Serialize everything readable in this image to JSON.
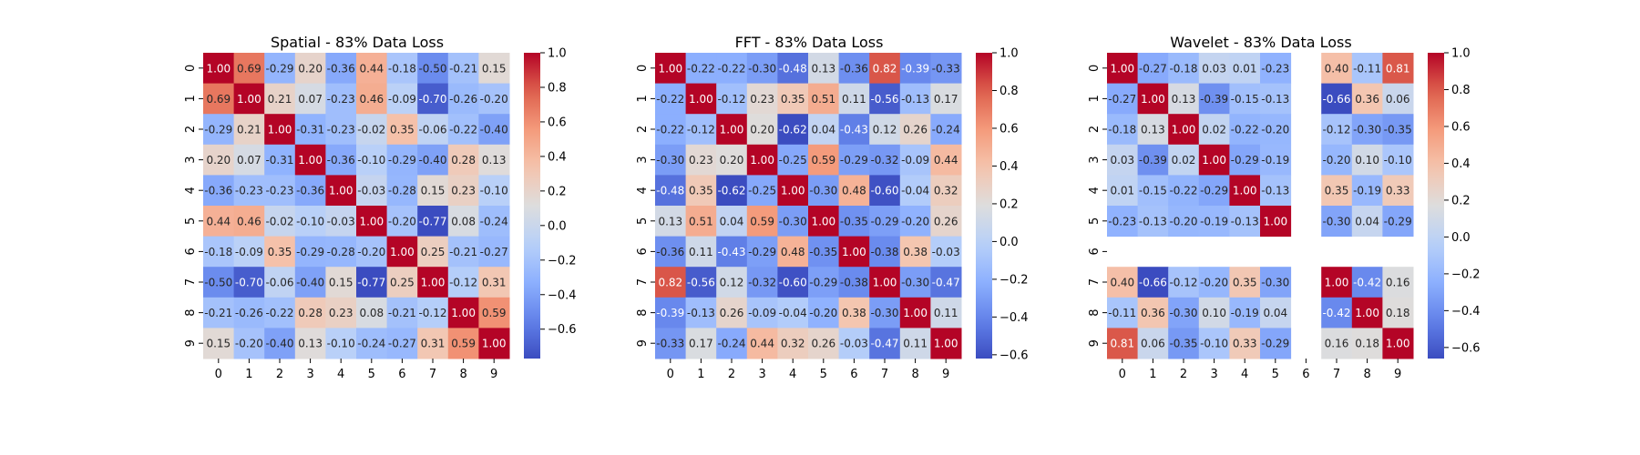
{
  "chart_data": [
    {
      "type": "heatmap",
      "title": "Spatial - 83% Data Loss",
      "x_ticks": [
        "0",
        "1",
        "2",
        "3",
        "4",
        "5",
        "6",
        "7",
        "8",
        "9"
      ],
      "y_ticks": [
        "0",
        "1",
        "2",
        "3",
        "4",
        "5",
        "6",
        "7",
        "8",
        "9"
      ],
      "colormap": "coolwarm",
      "vmin": -0.77,
      "vmax": 1.0,
      "colorbar_ticks": [
        "−0.6",
        "−0.4",
        "−0.2",
        "0.0",
        "0.2",
        "0.4",
        "0.6",
        "0.8",
        "1.0"
      ],
      "colorbar_values": [
        -0.6,
        -0.4,
        -0.2,
        0.0,
        0.2,
        0.4,
        0.6,
        0.8,
        1.0
      ],
      "matrix": [
        [
          1.0,
          0.69,
          -0.29,
          0.2,
          -0.36,
          0.44,
          -0.18,
          -0.5,
          -0.21,
          0.15
        ],
        [
          0.69,
          1.0,
          0.21,
          0.07,
          -0.23,
          0.46,
          -0.09,
          -0.7,
          -0.26,
          -0.2
        ],
        [
          -0.29,
          0.21,
          1.0,
          -0.31,
          -0.23,
          -0.02,
          0.35,
          -0.06,
          -0.22,
          -0.4
        ],
        [
          0.2,
          0.07,
          -0.31,
          1.0,
          -0.36,
          -0.1,
          -0.29,
          -0.4,
          0.28,
          0.13
        ],
        [
          -0.36,
          -0.23,
          -0.23,
          -0.36,
          1.0,
          -0.03,
          -0.28,
          0.15,
          0.23,
          -0.1
        ],
        [
          0.44,
          0.46,
          -0.02,
          -0.1,
          -0.03,
          1.0,
          -0.2,
          -0.77,
          0.08,
          -0.24
        ],
        [
          -0.18,
          -0.09,
          0.35,
          -0.29,
          -0.28,
          -0.2,
          1.0,
          0.25,
          -0.21,
          -0.27
        ],
        [
          -0.5,
          -0.7,
          -0.06,
          -0.4,
          0.15,
          -0.77,
          0.25,
          1.0,
          -0.12,
          0.31
        ],
        [
          -0.21,
          -0.26,
          -0.22,
          0.28,
          0.23,
          0.08,
          -0.21,
          -0.12,
          1.0,
          0.59
        ],
        [
          0.15,
          -0.2,
          -0.4,
          0.13,
          -0.1,
          -0.24,
          -0.27,
          0.31,
          0.59,
          1.0
        ]
      ]
    },
    {
      "type": "heatmap",
      "title": "FFT - 83% Data Loss",
      "x_ticks": [
        "0",
        "1",
        "2",
        "3",
        "4",
        "5",
        "6",
        "7",
        "8",
        "9"
      ],
      "y_ticks": [
        "0",
        "1",
        "2",
        "3",
        "4",
        "5",
        "6",
        "7",
        "8",
        "9"
      ],
      "colormap": "coolwarm",
      "vmin": -0.62,
      "vmax": 1.0,
      "colorbar_ticks": [
        "−0.6",
        "−0.4",
        "−0.2",
        "0.0",
        "0.2",
        "0.4",
        "0.6",
        "0.8",
        "1.0"
      ],
      "colorbar_values": [
        -0.6,
        -0.4,
        -0.2,
        0.0,
        0.2,
        0.4,
        0.6,
        0.8,
        1.0
      ],
      "matrix": [
        [
          1.0,
          -0.22,
          -0.22,
          -0.3,
          -0.48,
          0.13,
          -0.36,
          0.82,
          -0.39,
          -0.33
        ],
        [
          -0.22,
          1.0,
          -0.12,
          0.23,
          0.35,
          0.51,
          0.11,
          -0.56,
          -0.13,
          0.17
        ],
        [
          -0.22,
          -0.12,
          1.0,
          0.2,
          -0.62,
          0.04,
          -0.43,
          0.12,
          0.26,
          -0.24
        ],
        [
          -0.3,
          0.23,
          0.2,
          1.0,
          -0.25,
          0.59,
          -0.29,
          -0.32,
          -0.09,
          0.44
        ],
        [
          -0.48,
          0.35,
          -0.62,
          -0.25,
          1.0,
          -0.3,
          0.48,
          -0.6,
          -0.04,
          0.32
        ],
        [
          0.13,
          0.51,
          0.04,
          0.59,
          -0.3,
          1.0,
          -0.35,
          -0.29,
          -0.2,
          0.26
        ],
        [
          -0.36,
          0.11,
          -0.43,
          -0.29,
          0.48,
          -0.35,
          1.0,
          -0.38,
          0.38,
          -0.03
        ],
        [
          0.82,
          -0.56,
          0.12,
          -0.32,
          -0.6,
          -0.29,
          -0.38,
          1.0,
          -0.3,
          -0.47
        ],
        [
          -0.39,
          -0.13,
          0.26,
          -0.09,
          -0.04,
          -0.2,
          0.38,
          -0.3,
          1.0,
          0.11
        ],
        [
          -0.33,
          0.17,
          -0.24,
          0.44,
          0.32,
          0.26,
          -0.03,
          -0.47,
          0.11,
          1.0
        ]
      ]
    },
    {
      "type": "heatmap",
      "title": "Wavelet - 83% Data Loss",
      "x_ticks": [
        "0",
        "1",
        "2",
        "3",
        "4",
        "5",
        "6",
        "7",
        "8",
        "9"
      ],
      "y_ticks": [
        "0",
        "1",
        "2",
        "3",
        "4",
        "5",
        "6",
        "7",
        "8",
        "9"
      ],
      "colormap": "coolwarm",
      "vmin": -0.66,
      "vmax": 1.0,
      "colorbar_ticks": [
        "−0.6",
        "−0.4",
        "−0.2",
        "0.0",
        "0.2",
        "0.4",
        "0.6",
        "0.8",
        "1.0"
      ],
      "colorbar_values": [
        -0.6,
        -0.4,
        -0.2,
        0.0,
        0.2,
        0.4,
        0.6,
        0.8,
        1.0
      ],
      "matrix": [
        [
          1.0,
          -0.27,
          -0.18,
          0.03,
          0.01,
          -0.23,
          null,
          0.4,
          -0.11,
          0.81
        ],
        [
          -0.27,
          1.0,
          0.13,
          -0.39,
          -0.15,
          -0.13,
          null,
          -0.66,
          0.36,
          0.06
        ],
        [
          -0.18,
          0.13,
          1.0,
          0.02,
          -0.22,
          -0.2,
          null,
          -0.12,
          -0.3,
          -0.35
        ],
        [
          0.03,
          -0.39,
          0.02,
          1.0,
          -0.29,
          -0.19,
          null,
          -0.2,
          0.1,
          -0.1
        ],
        [
          0.01,
          -0.15,
          -0.22,
          -0.29,
          1.0,
          -0.13,
          null,
          0.35,
          -0.19,
          0.33
        ],
        [
          -0.23,
          -0.13,
          -0.2,
          -0.19,
          -0.13,
          1.0,
          null,
          -0.3,
          0.04,
          -0.29
        ],
        [
          null,
          null,
          null,
          null,
          null,
          null,
          null,
          null,
          null,
          null
        ],
        [
          0.4,
          -0.66,
          -0.12,
          -0.2,
          0.35,
          -0.3,
          null,
          1.0,
          -0.42,
          0.16
        ],
        [
          -0.11,
          0.36,
          -0.3,
          0.1,
          -0.19,
          0.04,
          null,
          -0.42,
          1.0,
          0.18
        ],
        [
          0.81,
          0.06,
          -0.35,
          -0.1,
          0.33,
          -0.29,
          null,
          0.16,
          0.18,
          1.0
        ]
      ]
    }
  ]
}
